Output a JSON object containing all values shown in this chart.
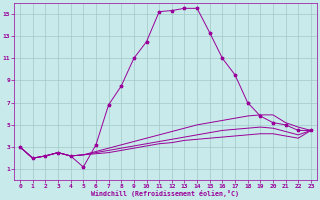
{
  "background_color": "#c8eaea",
  "grid_color": "#a0c8c8",
  "line_color": "#990099",
  "xlabel": "Windchill (Refroidissement éolien,°C)",
  "xlim": [
    -0.5,
    23.5
  ],
  "ylim": [
    0,
    16
  ],
  "xticks": [
    0,
    1,
    2,
    3,
    4,
    5,
    6,
    7,
    8,
    9,
    10,
    11,
    12,
    13,
    14,
    15,
    16,
    17,
    18,
    19,
    20,
    21,
    22,
    23
  ],
  "yticks": [
    1,
    3,
    5,
    7,
    9,
    11,
    13,
    15
  ],
  "curve1_x": [
    0,
    1,
    2,
    3,
    4,
    5,
    6,
    7,
    8,
    9,
    10,
    11,
    12,
    13,
    14,
    15,
    16,
    17,
    18,
    19,
    20,
    21,
    22,
    23
  ],
  "curve1_y": [
    3.0,
    2.0,
    2.2,
    2.5,
    2.2,
    1.2,
    3.2,
    6.8,
    8.5,
    11.0,
    12.5,
    15.2,
    15.3,
    15.5,
    15.5,
    13.3,
    11.0,
    9.5,
    7.0,
    5.8,
    5.2,
    5.0,
    4.5,
    4.5
  ],
  "curve2_x": [
    0,
    1,
    2,
    3,
    4,
    5,
    6,
    7,
    8,
    9,
    10,
    11,
    12,
    13,
    14,
    15,
    16,
    17,
    18,
    19,
    20,
    21,
    22,
    23
  ],
  "curve2_y": [
    3.0,
    2.0,
    2.2,
    2.5,
    2.2,
    2.3,
    2.6,
    2.9,
    3.2,
    3.5,
    3.8,
    4.1,
    4.4,
    4.7,
    5.0,
    5.2,
    5.4,
    5.6,
    5.8,
    5.9,
    5.9,
    5.2,
    4.8,
    4.5
  ],
  "curve3_x": [
    0,
    1,
    2,
    3,
    4,
    5,
    6,
    7,
    8,
    9,
    10,
    11,
    12,
    13,
    14,
    15,
    16,
    17,
    18,
    19,
    20,
    21,
    22,
    23
  ],
  "curve3_y": [
    3.0,
    2.0,
    2.2,
    2.5,
    2.2,
    2.3,
    2.5,
    2.7,
    2.9,
    3.1,
    3.3,
    3.5,
    3.7,
    3.9,
    4.1,
    4.3,
    4.5,
    4.6,
    4.7,
    4.8,
    4.7,
    4.4,
    4.1,
    4.5
  ],
  "curve4_x": [
    0,
    1,
    2,
    3,
    4,
    5,
    6,
    7,
    8,
    9,
    10,
    11,
    12,
    13,
    14,
    15,
    16,
    17,
    18,
    19,
    20,
    21,
    22,
    23
  ],
  "curve4_y": [
    3.0,
    2.0,
    2.2,
    2.5,
    2.2,
    2.3,
    2.4,
    2.5,
    2.7,
    2.9,
    3.1,
    3.3,
    3.4,
    3.6,
    3.7,
    3.8,
    3.9,
    4.0,
    4.1,
    4.2,
    4.2,
    4.0,
    3.8,
    4.5
  ]
}
